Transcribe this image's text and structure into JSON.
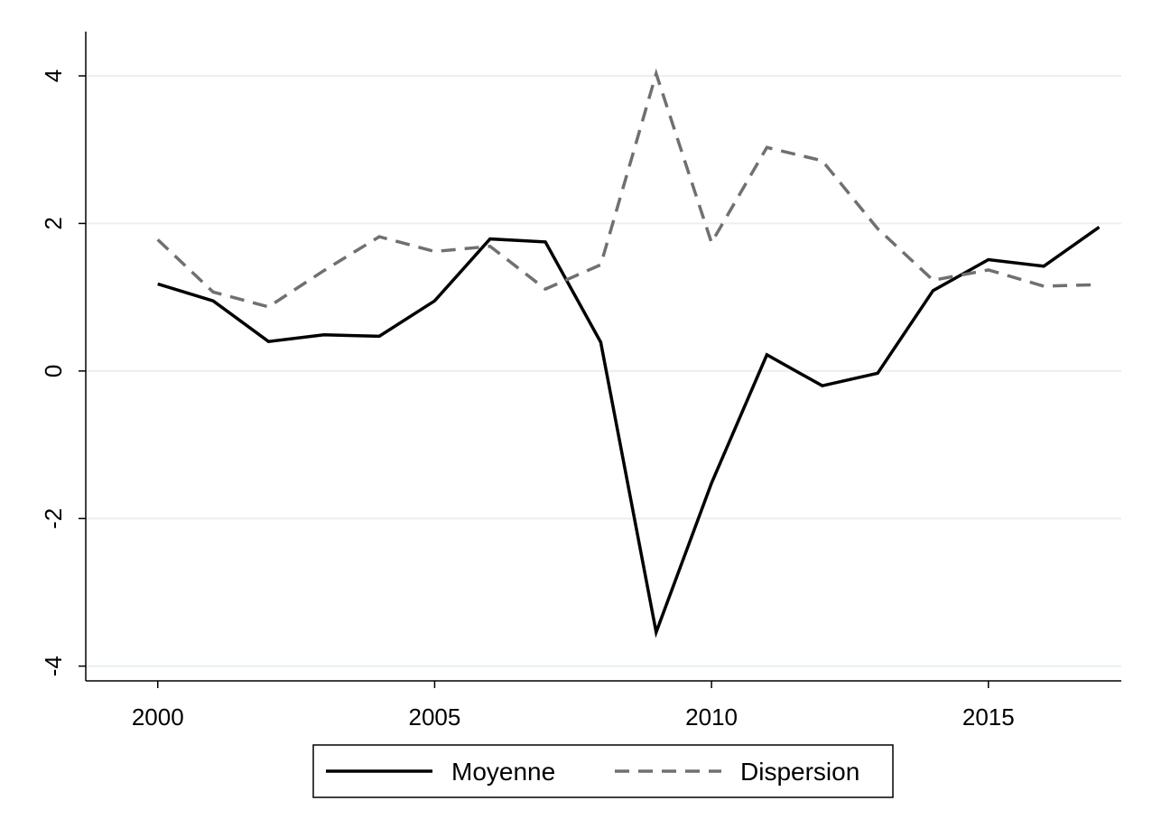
{
  "chart_data": {
    "type": "line",
    "title": "",
    "xlabel": "",
    "ylabel": "",
    "xlim": [
      1998.7,
      2017.4
    ],
    "ylim": [
      -4.2,
      4.6
    ],
    "xticks": [
      2000,
      2005,
      2010,
      2015
    ],
    "yticks": [
      -4,
      -2,
      0,
      2,
      4
    ],
    "grid": true,
    "legend_position": "bottom",
    "x": [
      2000,
      2001,
      2002,
      2003,
      2004,
      2005,
      2006,
      2007,
      2008,
      2009,
      2010,
      2011,
      2012,
      2013,
      2014,
      2015,
      2016,
      2017
    ],
    "series": [
      {
        "name": "Moyenne",
        "color": "#000000",
        "style": "solid",
        "values": [
          1.18,
          0.95,
          0.4,
          0.49,
          0.47,
          0.95,
          1.79,
          1.75,
          0.39,
          -3.54,
          -1.52,
          0.22,
          -0.2,
          -0.03,
          1.09,
          1.51,
          1.42,
          1.95
        ]
      },
      {
        "name": "Dispersion",
        "color": "#707070",
        "style": "dashed",
        "values": [
          1.78,
          1.07,
          0.87,
          1.36,
          1.82,
          1.62,
          1.69,
          1.11,
          1.44,
          4.03,
          1.74,
          3.03,
          2.85,
          1.93,
          1.23,
          1.37,
          1.15,
          1.17
        ]
      }
    ]
  }
}
